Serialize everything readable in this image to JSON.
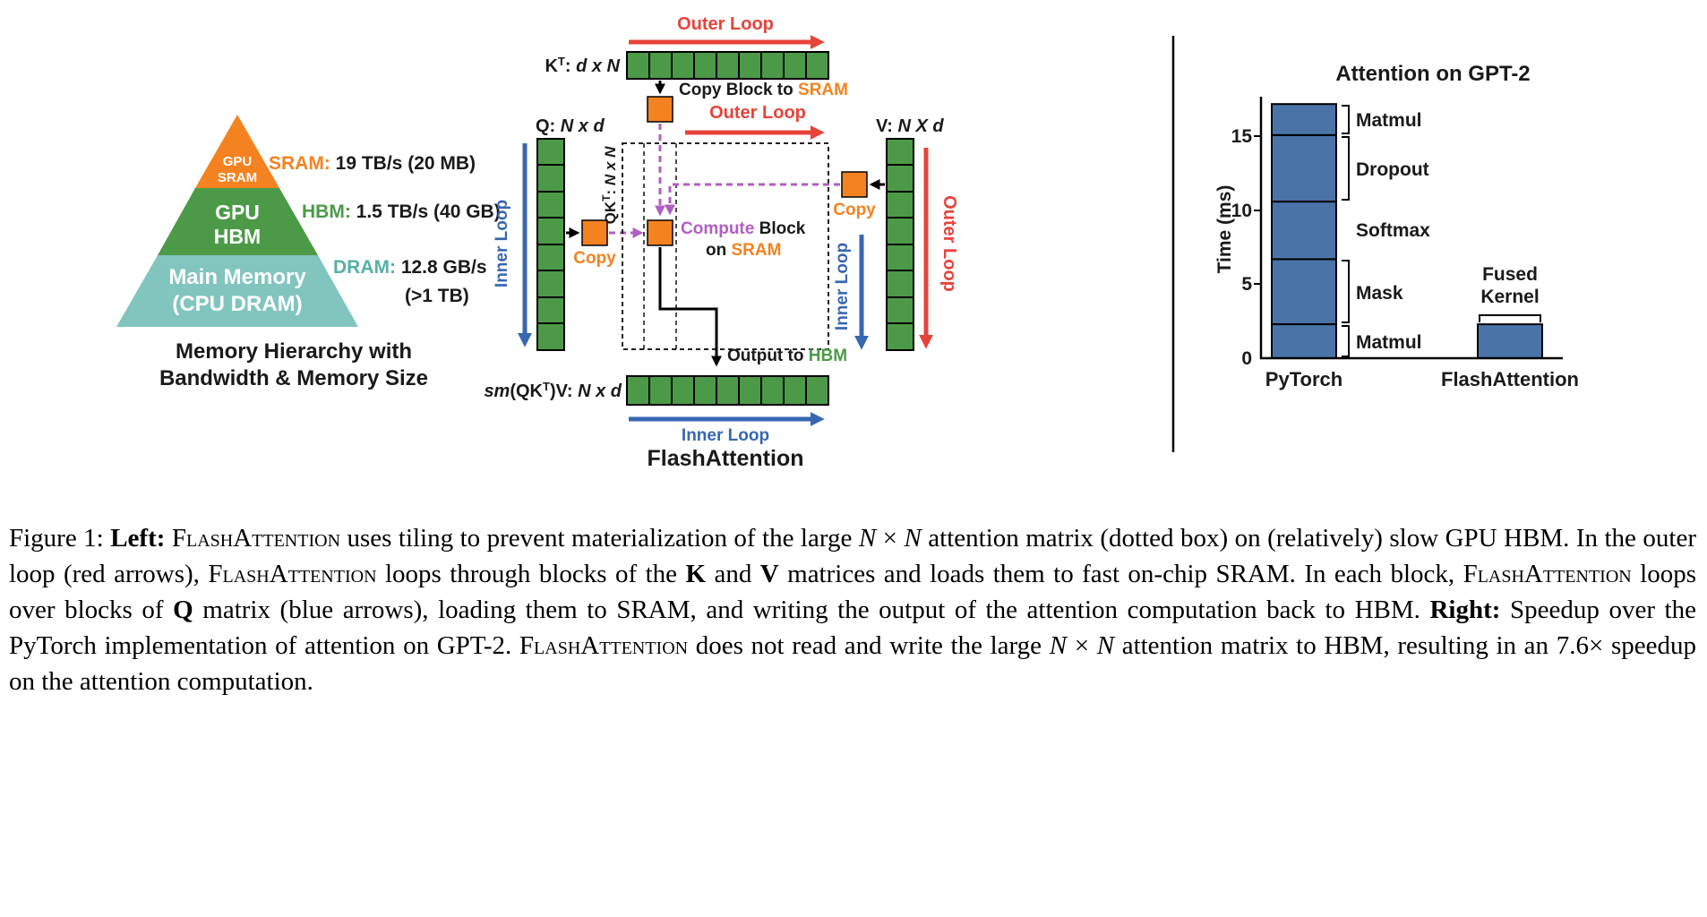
{
  "colors": {
    "orange": "#F58220",
    "green": "#4C9A48",
    "teal": "#82C5BF",
    "red": "#E8433A",
    "blue": "#3767B1",
    "purple": "#B05EC2",
    "bar_blue": "#4A74A8"
  },
  "pyramid": {
    "levels": [
      {
        "line1": "GPU",
        "line2": "SRAM"
      },
      {
        "line1": "GPU",
        "line2": "HBM"
      },
      {
        "line1": "Main Memory",
        "line2": "(CPU DRAM)"
      }
    ],
    "annotations": [
      {
        "label": "SRAM:",
        "value": " 19 TB/s (20 MB)"
      },
      {
        "label": "HBM:",
        "value": " 1.5 TB/s (40 GB)"
      },
      {
        "label": "DRAM:",
        "value": " 12.8 GB/s",
        "value2": "(>1 TB)"
      }
    ],
    "caption1": "Memory Hierarchy with",
    "caption2": "Bandwidth & Memory Size"
  },
  "diagram": {
    "outer_loop": "Outer Loop",
    "inner_loop": "Inner Loop",
    "kt": {
      "base": "K",
      "sup": "T",
      "sep": ": ",
      "dims": "d x N"
    },
    "q": {
      "base": "Q: ",
      "dims": "N x d"
    },
    "v": {
      "base": "V: ",
      "dims": "N X d"
    },
    "qkt": {
      "base": "QK",
      "sup": "T",
      "sep": ": ",
      "dims": "N x N"
    },
    "out_matrix": {
      "sm": "sm",
      "open": "(QK",
      "sup": "T",
      "close": ")V: ",
      "dims": "N x d"
    },
    "copy_block_prefix": "Copy Block to ",
    "sram": "SRAM",
    "compute_word": "Compute",
    "compute_rest": " Block",
    "compute_on": "on ",
    "copy": "Copy",
    "output_prefix": "Output to ",
    "hbm": "HBM",
    "title": "FlashAttention"
  },
  "chart": {
    "fused1": "Fused",
    "fused2": "Kernel"
  },
  "chart_data": {
    "type": "bar",
    "title": "Attention on GPT-2",
    "ylabel": "Time (ms)",
    "ylim": [
      0,
      17.5
    ],
    "yticks": [
      0,
      5,
      10,
      15
    ],
    "grid": false,
    "legend_position": "none",
    "bars": [
      {
        "category": "PyTorch",
        "total": 17.2,
        "stack": [
          {
            "label": "Matmul",
            "value": 2.3
          },
          {
            "label": "Mask",
            "value": 4.4
          },
          {
            "label": "Softmax",
            "value": 3.9
          },
          {
            "label": "Dropout",
            "value": 4.5
          },
          {
            "label": "Matmul",
            "value": 2.1
          }
        ]
      },
      {
        "category": "FlashAttention",
        "total": 2.3,
        "stack": [
          {
            "label": "Fused Kernel",
            "value": 2.3
          }
        ]
      }
    ]
  },
  "caption": {
    "runs": [
      {
        "t": "Figure 1: "
      },
      {
        "t": "Left:",
        "b": true
      },
      {
        "t": " "
      },
      {
        "t": "FlashAttention",
        "sc": true
      },
      {
        "t": " uses tiling to prevent materialization of the large "
      },
      {
        "t": "N",
        "i": true
      },
      {
        "t": " × "
      },
      {
        "t": "N",
        "i": true
      },
      {
        "t": " attention matrix (dotted box) on (relatively) slow GPU HBM. In the outer loop (red arrows), "
      },
      {
        "t": "FlashAttention",
        "sc": true
      },
      {
        "t": " loops through blocks of the "
      },
      {
        "t": "K",
        "b": true
      },
      {
        "t": " and "
      },
      {
        "t": "V",
        "b": true
      },
      {
        "t": " matrices and loads them to fast on-chip SRAM. In each block, "
      },
      {
        "t": "FlashAttention",
        "sc": true
      },
      {
        "t": " loops over blocks of "
      },
      {
        "t": "Q",
        "b": true
      },
      {
        "t": " matrix (blue arrows), loading them to SRAM, and writing the output of the attention computation back to HBM. "
      },
      {
        "t": "Right:",
        "b": true
      },
      {
        "t": " Speedup over the PyTorch implementation of attention on GPT-2. "
      },
      {
        "t": "FlashAttention",
        "sc": true
      },
      {
        "t": " does not read and write the large "
      },
      {
        "t": "N",
        "i": true
      },
      {
        "t": " × "
      },
      {
        "t": "N",
        "i": true
      },
      {
        "t": " attention matrix to HBM, resulting in an 7.6× speedup on the attention computation."
      }
    ]
  }
}
